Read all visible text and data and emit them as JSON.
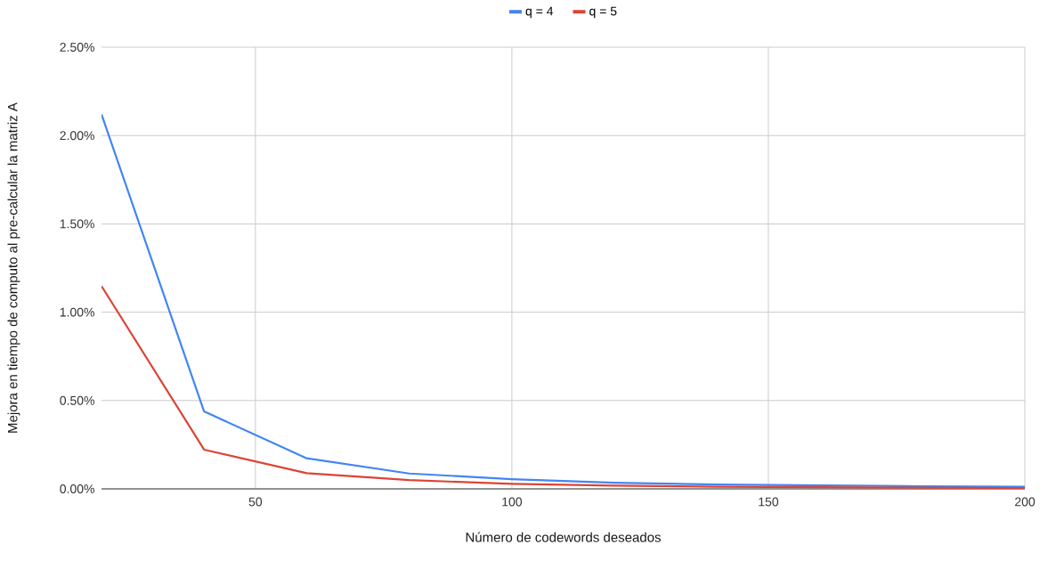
{
  "chart_data": {
    "type": "line",
    "xlabel": "Número de codewords deseados",
    "ylabel": "Mejora en tiempo de computo al pre-calcular la matriz A",
    "x": [
      20,
      40,
      60,
      80,
      100,
      120,
      140,
      160,
      180,
      200
    ],
    "series": [
      {
        "name": "q = 4",
        "color": "#4285f4",
        "values": [
          2.12,
          0.438,
          0.173,
          0.087,
          0.055,
          0.035,
          0.025,
          0.02,
          0.015,
          0.012
        ]
      },
      {
        "name": "q = 5",
        "color": "#db4437",
        "values": [
          1.148,
          0.222,
          0.089,
          0.05,
          0.028,
          0.018,
          0.012,
          0.009,
          0.007,
          0.005
        ]
      }
    ],
    "xlim": [
      20,
      200
    ],
    "xticks": [
      50,
      100,
      150,
      200
    ],
    "ylim": [
      0,
      2.5
    ],
    "yticks": [
      {
        "value": 0,
        "label": "0.00%"
      },
      {
        "value": 0.5,
        "label": "0.50%"
      },
      {
        "value": 1,
        "label": "1.00%"
      },
      {
        "value": 1.5,
        "label": "1.50%"
      },
      {
        "value": 2,
        "label": "2.00%"
      },
      {
        "value": 2.5,
        "label": "2.50%"
      }
    ],
    "grid": true,
    "legend": "top",
    "marker": "none",
    "line_style": "solid"
  }
}
